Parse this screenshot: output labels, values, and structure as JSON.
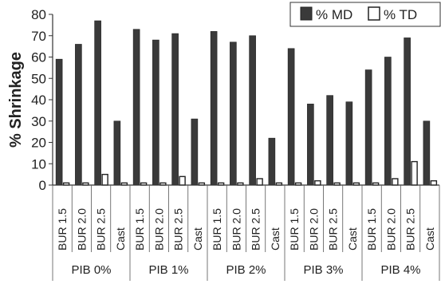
{
  "chart_data": {
    "type": "bar",
    "ylabel": "% Shrinkage",
    "xlabel": "",
    "ylim": [
      0,
      80
    ],
    "yticks": [
      0,
      10,
      20,
      30,
      40,
      50,
      60,
      70,
      80
    ],
    "legend_position": "top-right",
    "groups": [
      {
        "label": "PIB 0%",
        "categories": [
          "BUR 1.5",
          "BUR 2.0",
          "BUR 2.5",
          "Cast"
        ]
      },
      {
        "label": "PIB 1%",
        "categories": [
          "BUR 1.5",
          "BUR 2.0",
          "BUR 2.5",
          "Cast"
        ]
      },
      {
        "label": "PIB 2%",
        "categories": [
          "BUR 1.5",
          "BUR 2.0",
          "BUR 2.5",
          "Cast"
        ]
      },
      {
        "label": "PIB 3%",
        "categories": [
          "BUR 1.5",
          "BUR 2.0",
          "BUR 2.5",
          "Cast"
        ]
      },
      {
        "label": "PIB 4%",
        "categories": [
          "BUR 1.5",
          "BUR 2.0",
          "BUR 2.5",
          "Cast"
        ]
      }
    ],
    "series": [
      {
        "name": "% MD",
        "color": "#3a3a3a",
        "values": [
          59,
          66,
          77,
          30,
          73,
          68,
          71,
          31,
          72,
          67,
          70,
          22,
          64,
          38,
          42,
          39,
          54,
          60,
          69,
          30
        ]
      },
      {
        "name": "% TD",
        "color": "#ffffff",
        "values": [
          1,
          1,
          5,
          1,
          1,
          1,
          4,
          1,
          1,
          1,
          3,
          1,
          1,
          2,
          1,
          1,
          1,
          3,
          11,
          2
        ]
      }
    ]
  }
}
